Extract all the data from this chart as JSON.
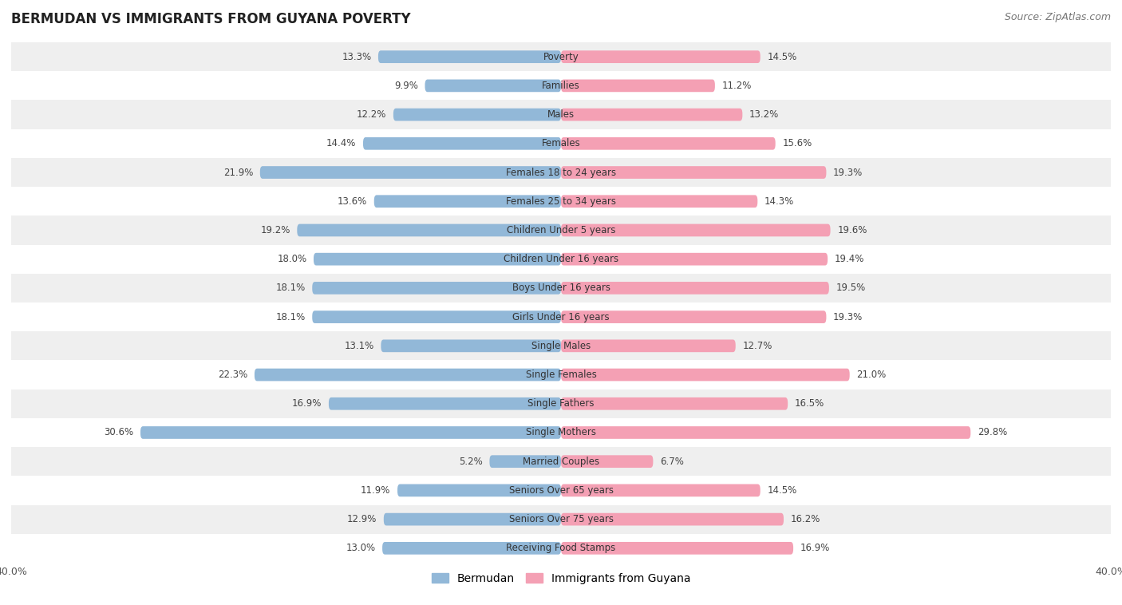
{
  "title": "BERMUDAN VS IMMIGRANTS FROM GUYANA POVERTY",
  "source": "Source: ZipAtlas.com",
  "categories": [
    "Poverty",
    "Families",
    "Males",
    "Females",
    "Females 18 to 24 years",
    "Females 25 to 34 years",
    "Children Under 5 years",
    "Children Under 16 years",
    "Boys Under 16 years",
    "Girls Under 16 years",
    "Single Males",
    "Single Females",
    "Single Fathers",
    "Single Mothers",
    "Married Couples",
    "Seniors Over 65 years",
    "Seniors Over 75 years",
    "Receiving Food Stamps"
  ],
  "bermudan": [
    13.3,
    9.9,
    12.2,
    14.4,
    21.9,
    13.6,
    19.2,
    18.0,
    18.1,
    18.1,
    13.1,
    22.3,
    16.9,
    30.6,
    5.2,
    11.9,
    12.9,
    13.0
  ],
  "guyana": [
    14.5,
    11.2,
    13.2,
    15.6,
    19.3,
    14.3,
    19.6,
    19.4,
    19.5,
    19.3,
    12.7,
    21.0,
    16.5,
    29.8,
    6.7,
    14.5,
    16.2,
    16.9
  ],
  "bermudan_color": "#92b8d8",
  "guyana_color": "#f4a0b4",
  "row_bg_light": "#efefef",
  "row_bg_white": "#ffffff",
  "xlim": 40.0,
  "bar_height": 0.62,
  "legend_labels": [
    "Bermudan",
    "Immigrants from Guyana"
  ],
  "label_fontsize": 8.5,
  "cat_fontsize": 8.5,
  "title_fontsize": 12,
  "source_fontsize": 9
}
